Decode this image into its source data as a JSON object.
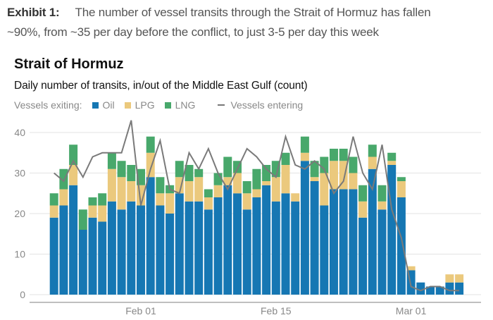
{
  "header": {
    "exhibit_label": "Exhibit 1:",
    "line1": "The number of vessel transits through the Strait of Hormuz has fallen",
    "line2": "~90%, from ~35 per day before the conflict, to just 3-5 per day this week"
  },
  "chart_data": {
    "type": "bar",
    "stacked": true,
    "title": "Strait of Hormuz",
    "subtitle": "Daily number of transits, in/out of the Middle East Gulf (count)",
    "legend": {
      "prefix": "Vessels exiting:",
      "items": [
        "Oil",
        "LPG",
        "LNG"
      ],
      "line_label": "Vessels entering",
      "placement": "top-left"
    },
    "ylim": [
      0,
      43
    ],
    "yticks": [
      0,
      10,
      20,
      30,
      40
    ],
    "xticks": [
      {
        "label": "Feb 01",
        "index": 9
      },
      {
        "label": "Feb 15",
        "index": 23
      },
      {
        "label": "Mar 01",
        "index": 37
      }
    ],
    "grid": true,
    "colors": {
      "oil": "#1677b3",
      "lpg": "#ebc97d",
      "lng": "#48a86b",
      "entering": "#7a7a7a"
    },
    "series": [
      {
        "name": "Oil",
        "values": [
          19,
          22,
          27,
          16,
          19,
          18,
          23,
          21,
          23,
          22,
          29,
          22,
          20,
          25,
          23,
          23,
          21,
          24,
          27,
          25,
          21,
          24,
          27,
          23,
          25,
          23,
          33,
          28,
          22,
          26,
          26,
          26,
          19,
          31,
          21,
          32,
          24,
          6,
          3,
          2,
          2,
          3,
          3
        ]
      },
      {
        "name": "LPG",
        "values": [
          3,
          4,
          5,
          0,
          3,
          4,
          8,
          8,
          5,
          5,
          6,
          3,
          5,
          4,
          5,
          6,
          3,
          3,
          2,
          5,
          4,
          2,
          1,
          6,
          7,
          2,
          2,
          1,
          8,
          7,
          7,
          4,
          4,
          3,
          2,
          1,
          4,
          1,
          0,
          0,
          0,
          2,
          2
        ]
      },
      {
        "name": "LNG",
        "values": [
          3,
          5,
          5,
          5,
          2,
          3,
          4,
          4,
          4,
          4,
          4,
          4,
          2,
          4,
          4,
          2,
          2,
          3,
          5,
          3,
          3,
          5,
          4,
          4,
          3,
          0,
          4,
          4,
          4,
          3,
          3,
          4,
          4,
          3,
          4,
          2,
          1,
          0,
          0,
          0,
          0,
          0,
          0
        ]
      },
      {
        "name": "Vessels entering",
        "type": "line",
        "values": [
          30,
          28,
          33,
          29,
          34,
          35,
          35,
          35,
          43,
          22,
          31,
          38,
          26,
          25,
          35,
          31,
          36,
          30,
          26,
          31,
          36,
          34,
          31,
          29,
          39,
          32,
          31,
          33,
          31,
          25,
          28,
          39,
          30,
          26,
          37,
          21,
          14,
          2,
          1,
          2,
          2,
          1,
          1
        ]
      }
    ]
  }
}
